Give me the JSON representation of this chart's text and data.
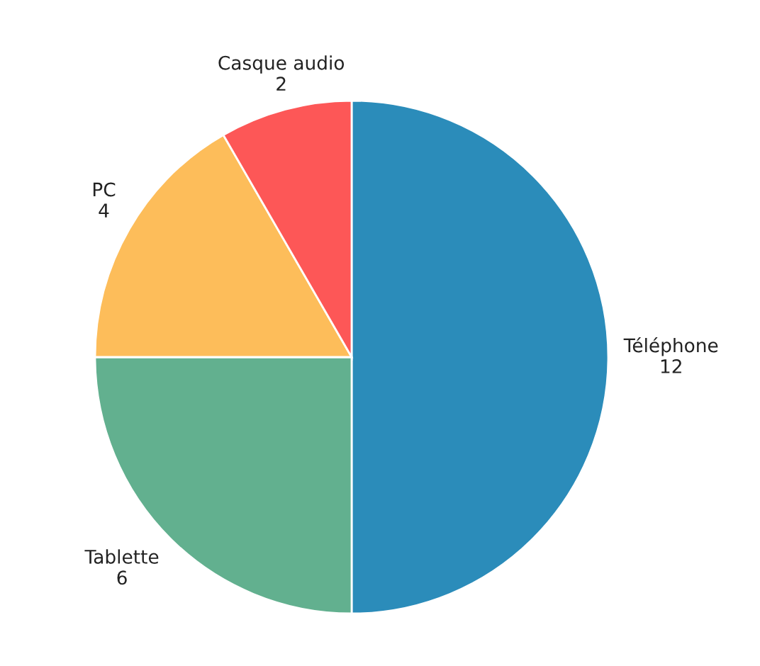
{
  "chart_data": {
    "type": "pie",
    "categories": [
      "Téléphone",
      "Tablette",
      "PC",
      "Casque audio"
    ],
    "values": [
      12,
      6,
      4,
      2
    ],
    "colors": [
      "#2b8cba",
      "#62b08f",
      "#fdbd5a",
      "#fd5757"
    ],
    "data_labels": true,
    "legend": false
  }
}
